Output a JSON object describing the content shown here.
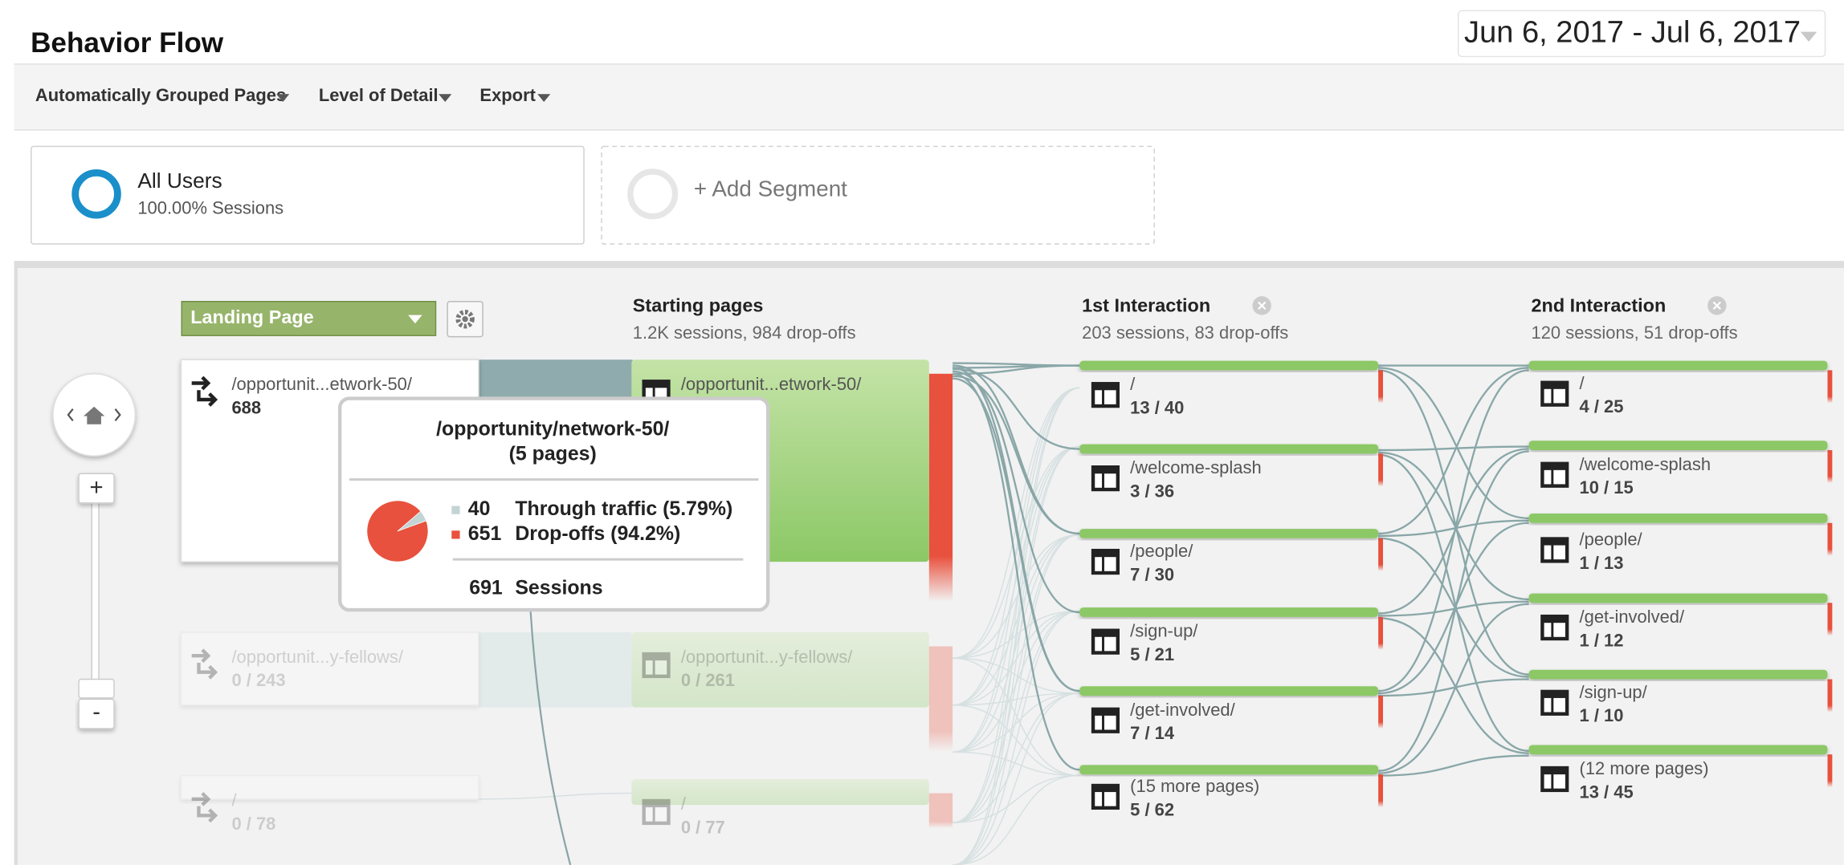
{
  "header": {
    "title": "Behavior Flow",
    "date_range": "Jun 6, 2017 - Jul 6, 2017"
  },
  "toolbar": [
    "Automatically Grouped Pages",
    "Level of Detail",
    "Export"
  ],
  "segments": [
    {
      "name": "All Users",
      "detail": "100.00% Sessions"
    },
    {
      "name": "+ Add Segment"
    }
  ],
  "selector": "Landing Page",
  "zoom": {
    "in": "+",
    "out": "-"
  },
  "columns": [
    {
      "title": "Starting pages",
      "summary": "1.2K sessions, 984 drop-offs"
    },
    {
      "title": "1st Interaction",
      "summary": "203 sessions, 83 drop-offs"
    },
    {
      "title": "2nd Interaction",
      "summary": "120 sessions, 51 drop-offs"
    }
  ],
  "landing_nodes": [
    {
      "label": "/opportunit...etwork-50/",
      "value": "688"
    },
    {
      "label": "/opportunit...y-fellows/",
      "value": "0 / 243"
    },
    {
      "label": "/",
      "value": "0 / 78"
    }
  ],
  "starting_nodes": [
    {
      "label": "/opportunit...etwork-50/"
    },
    {
      "label": "/opportunit...y-fellows/",
      "value": "0 / 261"
    },
    {
      "label": "/",
      "value": "0 / 77"
    }
  ],
  "interaction1": [
    {
      "label": "/",
      "value": "13 / 40"
    },
    {
      "label": "/welcome-splash",
      "value": "3 / 36"
    },
    {
      "label": "/people/",
      "value": "7 / 30"
    },
    {
      "label": "/sign-up/",
      "value": "5 / 21"
    },
    {
      "label": "/get-involved/",
      "value": "7 / 14"
    },
    {
      "label": "(15 more pages)",
      "value": "5 / 62"
    }
  ],
  "interaction2": [
    {
      "label": "/",
      "value": "4 / 25"
    },
    {
      "label": "/welcome-splash",
      "value": "10 / 15"
    },
    {
      "label": "/people/",
      "value": "1 / 13"
    },
    {
      "label": "/get-involved/",
      "value": "1 / 12"
    },
    {
      "label": "/sign-up/",
      "value": "1 / 10"
    },
    {
      "label": "(12 more pages)",
      "value": "13 / 45"
    }
  ],
  "tooltip": {
    "title": "/opportunity/network-50/",
    "subtitle": "(5 pages)",
    "rows": [
      {
        "value": 40,
        "label": "Through traffic (5.79%)"
      },
      {
        "value": 651,
        "label": "Drop-offs (94.2%)"
      }
    ],
    "total": 691,
    "total_label": "Sessions"
  }
}
